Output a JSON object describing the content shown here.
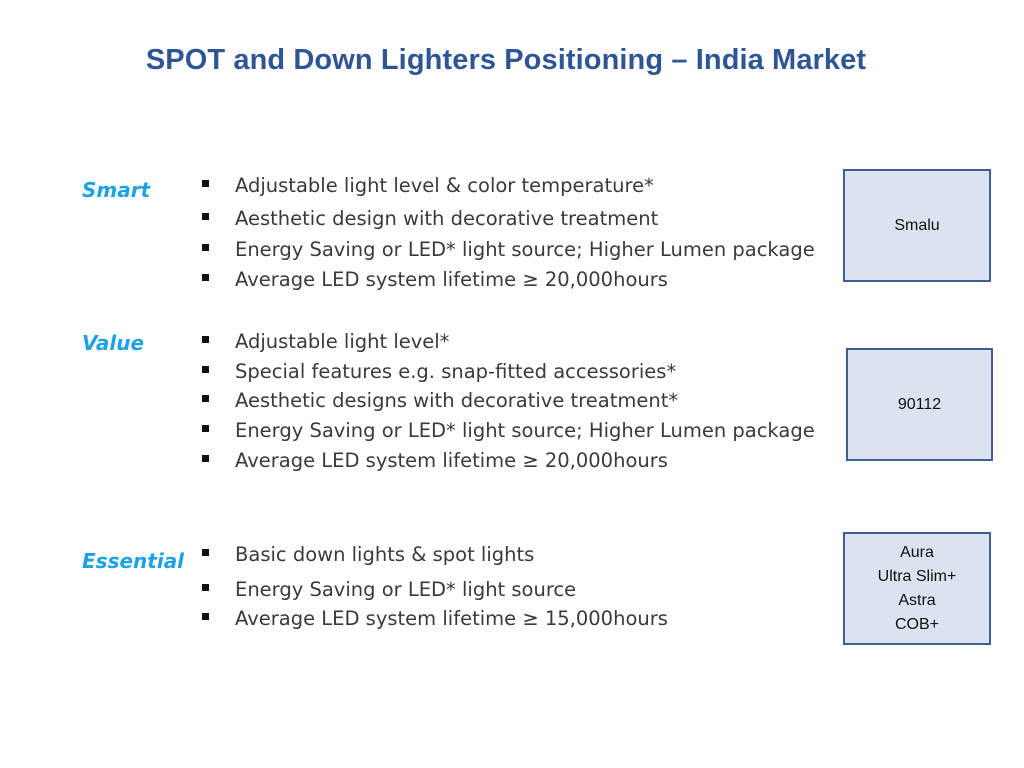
{
  "title": "SPOT and Down Lighters Positioning – India Market",
  "tiers": [
    {
      "label": "Smart",
      "bullets": [
        "Adjustable light level & color temperature*",
        "Aesthetic design with decorative treatment",
        "Energy Saving or LED* light source; Higher Lumen package",
        "Average LED system lifetime ≥ 20,000hours"
      ],
      "products": [
        "Smalu"
      ]
    },
    {
      "label": "Value",
      "bullets": [
        "Adjustable light level*",
        "Special features e.g. snap-fitted accessories*",
        "Aesthetic designs with decorative treatment*",
        "Energy Saving or LED* light source; Higher Lumen package",
        "Average LED system lifetime ≥ 20,000hours"
      ],
      "products": [
        "90112"
      ]
    },
    {
      "label": "Essential",
      "bullets": [
        "Basic down lights & spot lights",
        "Energy Saving or LED* light source",
        "Average LED system lifetime ≥ 15,000hours"
      ],
      "products": [
        "Aura",
        "Ultra Slim+",
        "Astra",
        "COB+"
      ]
    }
  ]
}
